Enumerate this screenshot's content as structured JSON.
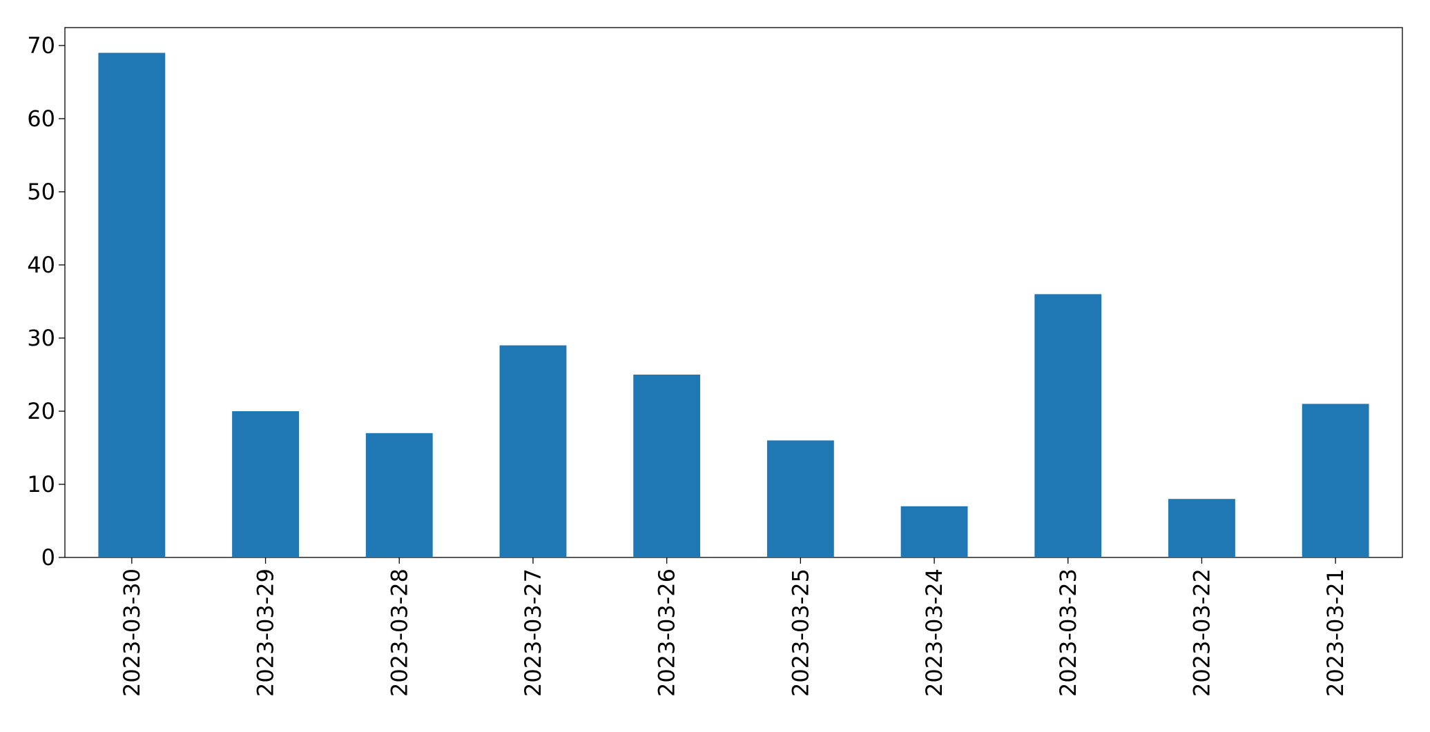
{
  "chart_data": {
    "type": "bar",
    "categories": [
      "2023-03-30",
      "2023-03-29",
      "2023-03-28",
      "2023-03-27",
      "2023-03-26",
      "2023-03-25",
      "2023-03-24",
      "2023-03-23",
      "2023-03-22",
      "2023-03-21"
    ],
    "values": [
      69,
      20,
      17,
      29,
      25,
      16,
      7,
      36,
      8,
      21
    ],
    "color": "#1f77b4",
    "ylim": [
      0,
      72.45
    ],
    "yticks": [
      0,
      10,
      20,
      30,
      40,
      50,
      60,
      70
    ],
    "grid": false
  }
}
